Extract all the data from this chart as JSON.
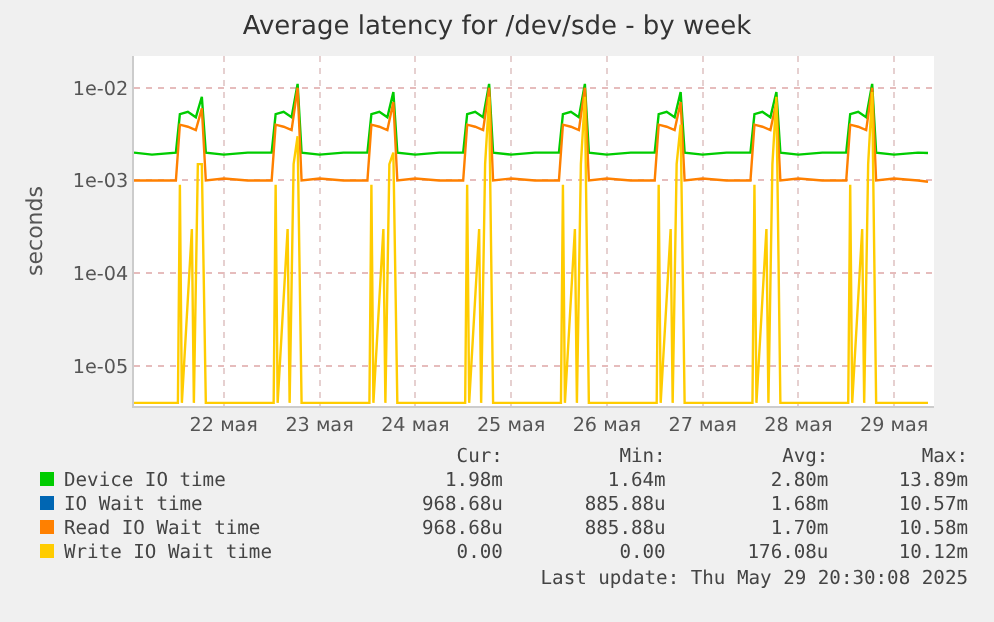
{
  "chart_data": {
    "type": "line",
    "title": "Average latency for /dev/sde - by week",
    "ylabel": "seconds",
    "log": "y",
    "grid": true,
    "legend": "bottom",
    "marker": "none",
    "line_style": "solid",
    "xlim": [
      "--05-21T13:30",
      "--05-29T22:00"
    ],
    "xticks": [
      {
        "value": "--05-22T12:00",
        "label": "22 мая"
      },
      {
        "value": "--05-23T12:00",
        "label": "23 мая"
      },
      {
        "value": "--05-24T12:00",
        "label": "24 мая"
      },
      {
        "value": "--05-25T12:00",
        "label": "25 мая"
      },
      {
        "value": "--05-26T12:00",
        "label": "26 мая"
      },
      {
        "value": "--05-27T12:00",
        "label": "27 мая"
      },
      {
        "value": "--05-28T12:00",
        "label": "28 мая"
      },
      {
        "value": "--05-29T12:00",
        "label": "29 мая"
      }
    ],
    "ylim": [
      3.7e-06,
      0.022
    ],
    "yticks": [
      {
        "value": 0.01,
        "label": "1e-02"
      },
      {
        "value": 0.001,
        "label": "1e-03"
      },
      {
        "value": 0.0001,
        "label": "1e-04"
      },
      {
        "value": 1e-05,
        "label": "1e-05"
      }
    ],
    "series": [
      {
        "name": "Device IO time",
        "color": "#00cc00",
        "x": [
          "--05-21T13:30",
          "--05-21T18:00",
          "--05-22T00:00",
          "--05-22T01:00",
          "--05-22T03:00",
          "--05-22T05:00",
          "--05-22T06:30",
          "--05-22T07:30",
          "--05-22T12:00",
          "--05-22T18:00",
          "--05-23T00:00",
          "--05-23T01:00",
          "--05-23T03:00",
          "--05-23T05:00",
          "--05-23T06:30",
          "--05-23T07:30",
          "--05-23T12:00",
          "--05-23T18:00",
          "--05-24T00:00",
          "--05-24T01:00",
          "--05-24T03:00",
          "--05-24T05:00",
          "--05-24T06:30",
          "--05-24T07:30",
          "--05-24T12:00",
          "--05-24T18:00",
          "--05-25T00:00",
          "--05-25T01:00",
          "--05-25T03:00",
          "--05-25T05:00",
          "--05-25T06:30",
          "--05-25T07:30",
          "--05-25T12:00",
          "--05-25T18:00",
          "--05-26T00:00",
          "--05-26T01:00",
          "--05-26T03:00",
          "--05-26T05:00",
          "--05-26T06:30",
          "--05-26T07:30",
          "--05-26T12:00",
          "--05-26T18:00",
          "--05-27T00:00",
          "--05-27T01:00",
          "--05-27T03:00",
          "--05-27T05:00",
          "--05-27T06:30",
          "--05-27T07:30",
          "--05-27T12:00",
          "--05-27T18:00",
          "--05-28T00:00",
          "--05-28T01:00",
          "--05-28T03:00",
          "--05-28T05:00",
          "--05-28T06:30",
          "--05-28T07:30",
          "--05-28T12:00",
          "--05-28T18:00",
          "--05-29T00:00",
          "--05-29T01:00",
          "--05-29T03:00",
          "--05-29T05:00",
          "--05-29T06:30",
          "--05-29T07:30",
          "--05-29T12:00",
          "--05-29T18:00",
          "--05-29T20:30"
        ],
        "values": [
          0.002,
          0.0019,
          0.002,
          0.0052,
          0.0055,
          0.0048,
          0.008,
          0.002,
          0.0019,
          0.002,
          0.002,
          0.0052,
          0.0055,
          0.0048,
          0.011,
          0.002,
          0.0019,
          0.002,
          0.002,
          0.0052,
          0.0055,
          0.0048,
          0.009,
          0.002,
          0.0019,
          0.002,
          0.002,
          0.0052,
          0.0055,
          0.0048,
          0.011,
          0.002,
          0.0019,
          0.002,
          0.002,
          0.0052,
          0.0055,
          0.0048,
          0.011,
          0.002,
          0.0019,
          0.002,
          0.002,
          0.0052,
          0.0055,
          0.0048,
          0.009,
          0.002,
          0.0019,
          0.002,
          0.002,
          0.0052,
          0.0055,
          0.0048,
          0.009,
          0.002,
          0.0019,
          0.002,
          0.002,
          0.0052,
          0.0055,
          0.0048,
          0.011,
          0.002,
          0.0019,
          0.002,
          0.00198
        ]
      },
      {
        "name": "IO Wait time",
        "color": "#0066b3"
      },
      {
        "name": "Read IO Wait time",
        "color": "#ff8000",
        "x": [
          "--05-21T13:30",
          "--05-21T18:00",
          "--05-22T00:00",
          "--05-22T01:00",
          "--05-22T03:00",
          "--05-22T05:00",
          "--05-22T06:30",
          "--05-22T07:30",
          "--05-22T12:00",
          "--05-22T18:00",
          "--05-23T00:00",
          "--05-23T01:00",
          "--05-23T03:00",
          "--05-23T05:00",
          "--05-23T06:30",
          "--05-23T07:30",
          "--05-23T12:00",
          "--05-23T18:00",
          "--05-24T00:00",
          "--05-24T01:00",
          "--05-24T03:00",
          "--05-24T05:00",
          "--05-24T06:30",
          "--05-24T07:30",
          "--05-24T12:00",
          "--05-24T18:00",
          "--05-25T00:00",
          "--05-25T01:00",
          "--05-25T03:00",
          "--05-25T05:00",
          "--05-25T06:30",
          "--05-25T07:30",
          "--05-25T12:00",
          "--05-25T18:00",
          "--05-26T00:00",
          "--05-26T01:00",
          "--05-26T03:00",
          "--05-26T05:00",
          "--05-26T06:30",
          "--05-26T07:30",
          "--05-26T12:00",
          "--05-26T18:00",
          "--05-27T00:00",
          "--05-27T01:00",
          "--05-27T03:00",
          "--05-27T05:00",
          "--05-27T06:30",
          "--05-27T07:30",
          "--05-27T12:00",
          "--05-27T18:00",
          "--05-28T00:00",
          "--05-28T01:00",
          "--05-28T03:00",
          "--05-28T05:00",
          "--05-28T06:30",
          "--05-28T07:30",
          "--05-28T12:00",
          "--05-28T18:00",
          "--05-29T00:00",
          "--05-29T01:00",
          "--05-29T03:00",
          "--05-29T05:00",
          "--05-29T06:30",
          "--05-29T07:30",
          "--05-29T12:00",
          "--05-29T18:00",
          "--05-29T20:30"
        ],
        "values": [
          0.001,
          0.001,
          0.001,
          0.004,
          0.0038,
          0.0035,
          0.006,
          0.001,
          0.00105,
          0.001,
          0.001,
          0.004,
          0.0038,
          0.0035,
          0.01,
          0.001,
          0.00105,
          0.001,
          0.001,
          0.004,
          0.0038,
          0.0035,
          0.007,
          0.001,
          0.00105,
          0.001,
          0.001,
          0.004,
          0.0038,
          0.0035,
          0.01,
          0.001,
          0.00105,
          0.001,
          0.001,
          0.004,
          0.0038,
          0.0035,
          0.01,
          0.001,
          0.00105,
          0.001,
          0.001,
          0.004,
          0.0038,
          0.0035,
          0.007,
          0.001,
          0.00105,
          0.001,
          0.001,
          0.004,
          0.0038,
          0.0035,
          0.007,
          0.001,
          0.00105,
          0.001,
          0.001,
          0.004,
          0.0038,
          0.0035,
          0.01,
          0.001,
          0.00105,
          0.001,
          0.00097
        ]
      },
      {
        "name": "Write IO Wait time",
        "color": "#ffcc00",
        "x": [
          "--05-21T13:30",
          "--05-22T00:30",
          "--05-22T01:00",
          "--05-22T01:30",
          "--05-22T04:00",
          "--05-22T04:30",
          "--05-22T05:30",
          "--05-22T06:30",
          "--05-22T07:30",
          "--05-23T00:30",
          "--05-23T01:00",
          "--05-23T01:30",
          "--05-23T04:00",
          "--05-23T04:30",
          "--05-23T05:30",
          "--05-23T06:30",
          "--05-23T07:30",
          "--05-24T00:30",
          "--05-24T01:00",
          "--05-24T01:30",
          "--05-24T04:00",
          "--05-24T04:30",
          "--05-24T05:30",
          "--05-24T06:30",
          "--05-24T07:30",
          "--05-25T00:30",
          "--05-25T01:00",
          "--05-25T01:30",
          "--05-25T04:00",
          "--05-25T04:30",
          "--05-25T05:30",
          "--05-25T06:30",
          "--05-25T07:30",
          "--05-26T00:30",
          "--05-26T01:00",
          "--05-26T01:30",
          "--05-26T04:00",
          "--05-26T04:30",
          "--05-26T05:30",
          "--05-26T06:30",
          "--05-26T07:30",
          "--05-27T00:30",
          "--05-27T01:00",
          "--05-27T01:30",
          "--05-27T04:00",
          "--05-27T04:30",
          "--05-27T05:30",
          "--05-27T06:30",
          "--05-27T07:30",
          "--05-28T00:30",
          "--05-28T01:00",
          "--05-28T01:30",
          "--05-28T04:00",
          "--05-28T04:30",
          "--05-28T05:30",
          "--05-28T06:30",
          "--05-28T07:30",
          "--05-29T00:30",
          "--05-29T01:00",
          "--05-29T01:30",
          "--05-29T04:00",
          "--05-29T04:30",
          "--05-29T05:30",
          "--05-29T06:30",
          "--05-29T07:30",
          "--05-29T20:30"
        ],
        "values": [
          4e-06,
          4e-06,
          0.0009,
          4e-06,
          0.0003,
          4e-06,
          0.0015,
          0.0015,
          4e-06,
          4e-06,
          0.0009,
          4e-06,
          0.0003,
          4e-06,
          0.0015,
          0.003,
          4e-06,
          4e-06,
          0.0009,
          4e-06,
          0.0003,
          4e-06,
          0.0015,
          0.002,
          4e-06,
          4e-06,
          0.0009,
          4e-06,
          0.0003,
          4e-06,
          0.0015,
          0.008,
          4e-06,
          4e-06,
          0.0009,
          4e-06,
          0.0003,
          4e-06,
          0.0015,
          0.008,
          4e-06,
          4e-06,
          0.0009,
          4e-06,
          0.0003,
          4e-06,
          0.0015,
          0.004,
          4e-06,
          4e-06,
          0.0009,
          4e-06,
          0.0003,
          4e-06,
          0.0015,
          0.008,
          4e-06,
          4e-06,
          0.0009,
          4e-06,
          0.0003,
          4e-06,
          0.0015,
          0.009,
          4e-06,
          4e-06
        ]
      }
    ],
    "annotations": [
      "Cur:",
      "Min:",
      "Avg:",
      "Max:",
      "1.98m",
      "1.64m",
      "2.80m",
      "13.89m",
      "968.68u",
      "885.88u",
      "1.68m",
      "10.57m",
      "968.68u",
      "885.88u",
      "1.70m",
      "10.58m",
      "0.00",
      "0.00",
      "176.08u",
      "10.12m",
      "Last update: Thu May 29 20:30:08 2025"
    ]
  }
}
